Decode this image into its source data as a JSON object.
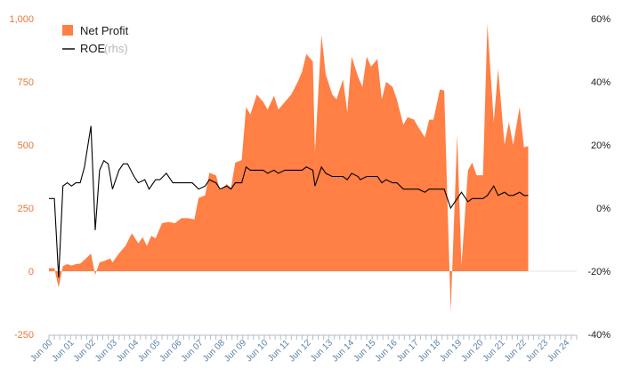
{
  "chart_data": {
    "type": "area+line",
    "colors": {
      "area": "#FF7F45",
      "line": "#000000",
      "left_ticks": "#E8763A",
      "right_ticks": "#1a1a1a",
      "x_ticks": "#5b7fa6"
    },
    "legend": {
      "area_label": "Net Profit",
      "line_label": "ROE",
      "line_suffix": "(rhs)"
    },
    "y_left": {
      "min": -250,
      "max": 1000,
      "ticks": [
        "1,000",
        "750",
        "500",
        "250",
        "0",
        "-250"
      ],
      "tick_values": [
        1000,
        750,
        500,
        250,
        0,
        -250
      ]
    },
    "y_right": {
      "min": -0.4,
      "max": 0.6,
      "ticks": [
        "60%",
        "40%",
        "20%",
        "0%",
        "-20%",
        "-40%"
      ],
      "tick_values": [
        0.6,
        0.4,
        0.2,
        0.0,
        -0.2,
        -0.4
      ]
    },
    "x": {
      "start": 2000.45,
      "end": 2024.95,
      "ticks": [
        "Jun 00",
        "Jun 01",
        "Jun 02",
        "Jun 03",
        "Jun 04",
        "Jun 05",
        "Jun 06",
        "Jun 07",
        "Jun 08",
        "Jun 09",
        "Jun 10",
        "Jun 11",
        "Jun 12",
        "Jun 13",
        "Jun 14",
        "Jun 15",
        "Jun 16",
        "Jun 17",
        "Jun 18",
        "Jun 19",
        "Jun 20",
        "Jun 21",
        "Jun 22",
        "Jun 23",
        "Jun 24"
      ],
      "tick_values": [
        2000.5,
        2001.5,
        2002.5,
        2003.5,
        2004.5,
        2005.5,
        2006.5,
        2007.5,
        2008.5,
        2009.5,
        2010.5,
        2011.5,
        2012.5,
        2013.5,
        2014.5,
        2015.5,
        2016.5,
        2017.5,
        2018.5,
        2019.5,
        2020.5,
        2021.5,
        2022.5,
        2023.5,
        2024.5
      ]
    },
    "series": [
      {
        "name": "Net Profit",
        "axis": "left",
        "points": [
          [
            2000.45,
            12
          ],
          [
            2000.7,
            12
          ],
          [
            2000.9,
            -65
          ],
          [
            2001.1,
            20
          ],
          [
            2001.3,
            28
          ],
          [
            2001.5,
            22
          ],
          [
            2001.7,
            28
          ],
          [
            2001.9,
            30
          ],
          [
            2002.1,
            45
          ],
          [
            2002.4,
            70
          ],
          [
            2002.6,
            -15
          ],
          [
            2002.8,
            35
          ],
          [
            2003.0,
            40
          ],
          [
            2003.3,
            50
          ],
          [
            2003.4,
            35
          ],
          [
            2003.7,
            70
          ],
          [
            2004.0,
            100
          ],
          [
            2004.3,
            150
          ],
          [
            2004.6,
            110
          ],
          [
            2004.8,
            135
          ],
          [
            2005.0,
            100
          ],
          [
            2005.2,
            140
          ],
          [
            2005.4,
            130
          ],
          [
            2005.7,
            190
          ],
          [
            2006.0,
            195
          ],
          [
            2006.3,
            190
          ],
          [
            2006.6,
            210
          ],
          [
            2006.9,
            210
          ],
          [
            2007.2,
            205
          ],
          [
            2007.4,
            290
          ],
          [
            2007.7,
            300
          ],
          [
            2007.9,
            390
          ],
          [
            2008.2,
            380
          ],
          [
            2008.4,
            320
          ],
          [
            2008.7,
            345
          ],
          [
            2008.9,
            330
          ],
          [
            2009.1,
            430
          ],
          [
            2009.4,
            440
          ],
          [
            2009.6,
            650
          ],
          [
            2009.8,
            620
          ],
          [
            2010.1,
            700
          ],
          [
            2010.4,
            670
          ],
          [
            2010.6,
            640
          ],
          [
            2010.9,
            695
          ],
          [
            2011.1,
            640
          ],
          [
            2011.4,
            670
          ],
          [
            2011.7,
            700
          ],
          [
            2012.0,
            750
          ],
          [
            2012.2,
            790
          ],
          [
            2012.4,
            860
          ],
          [
            2012.7,
            830
          ],
          [
            2012.8,
            470
          ],
          [
            2013.1,
            935
          ],
          [
            2013.3,
            780
          ],
          [
            2013.6,
            700
          ],
          [
            2013.8,
            680
          ],
          [
            2014.1,
            760
          ],
          [
            2014.3,
            630
          ],
          [
            2014.5,
            850
          ],
          [
            2014.8,
            770
          ],
          [
            2015.0,
            730
          ],
          [
            2015.2,
            850
          ],
          [
            2015.4,
            810
          ],
          [
            2015.7,
            840
          ],
          [
            2015.9,
            680
          ],
          [
            2016.1,
            750
          ],
          [
            2016.4,
            730
          ],
          [
            2016.6,
            680
          ],
          [
            2016.9,
            580
          ],
          [
            2017.1,
            610
          ],
          [
            2017.4,
            600
          ],
          [
            2017.6,
            570
          ],
          [
            2017.9,
            530
          ],
          [
            2018.1,
            600
          ],
          [
            2018.3,
            600
          ],
          [
            2018.6,
            720
          ],
          [
            2018.8,
            715
          ],
          [
            2019.1,
            -160
          ],
          [
            2019.4,
            540
          ],
          [
            2019.6,
            20
          ],
          [
            2019.9,
            400
          ],
          [
            2020.1,
            430
          ],
          [
            2020.3,
            380
          ],
          [
            2020.6,
            380
          ],
          [
            2020.8,
            980
          ],
          [
            2021.1,
            590
          ],
          [
            2021.3,
            800
          ],
          [
            2021.6,
            500
          ],
          [
            2021.8,
            590
          ],
          [
            2022.0,
            500
          ],
          [
            2022.3,
            650
          ],
          [
            2022.5,
            490
          ],
          [
            2022.7,
            495
          ]
        ]
      },
      {
        "name": "ROE",
        "axis": "right",
        "points": [
          [
            2000.45,
            0.03
          ],
          [
            2000.7,
            0.03
          ],
          [
            2000.9,
            -0.22
          ],
          [
            2001.1,
            0.07
          ],
          [
            2001.3,
            0.08
          ],
          [
            2001.5,
            0.07
          ],
          [
            2001.7,
            0.08
          ],
          [
            2001.9,
            0.08
          ],
          [
            2002.1,
            0.13
          ],
          [
            2002.4,
            0.26
          ],
          [
            2002.6,
            -0.07
          ],
          [
            2002.8,
            0.12
          ],
          [
            2003.0,
            0.15
          ],
          [
            2003.2,
            0.14
          ],
          [
            2003.4,
            0.06
          ],
          [
            2003.7,
            0.12
          ],
          [
            2003.9,
            0.14
          ],
          [
            2004.1,
            0.14
          ],
          [
            2004.4,
            0.1
          ],
          [
            2004.6,
            0.08
          ],
          [
            2004.9,
            0.09
          ],
          [
            2005.1,
            0.06
          ],
          [
            2005.4,
            0.09
          ],
          [
            2005.6,
            0.09
          ],
          [
            2005.9,
            0.11
          ],
          [
            2006.2,
            0.08
          ],
          [
            2006.5,
            0.08
          ],
          [
            2006.8,
            0.08
          ],
          [
            2007.1,
            0.08
          ],
          [
            2007.4,
            0.06
          ],
          [
            2007.7,
            0.07
          ],
          [
            2007.9,
            0.09
          ],
          [
            2008.2,
            0.08
          ],
          [
            2008.4,
            0.06
          ],
          [
            2008.7,
            0.07
          ],
          [
            2008.9,
            0.06
          ],
          [
            2009.1,
            0.08
          ],
          [
            2009.4,
            0.08
          ],
          [
            2009.6,
            0.13
          ],
          [
            2009.8,
            0.12
          ],
          [
            2010.1,
            0.12
          ],
          [
            2010.4,
            0.12
          ],
          [
            2010.6,
            0.11
          ],
          [
            2010.9,
            0.12
          ],
          [
            2011.1,
            0.11
          ],
          [
            2011.4,
            0.12
          ],
          [
            2011.7,
            0.12
          ],
          [
            2012.0,
            0.12
          ],
          [
            2012.2,
            0.12
          ],
          [
            2012.4,
            0.13
          ],
          [
            2012.7,
            0.12
          ],
          [
            2012.8,
            0.07
          ],
          [
            2013.1,
            0.13
          ],
          [
            2013.3,
            0.11
          ],
          [
            2013.6,
            0.1
          ],
          [
            2013.8,
            0.1
          ],
          [
            2014.1,
            0.1
          ],
          [
            2014.3,
            0.09
          ],
          [
            2014.5,
            0.11
          ],
          [
            2014.8,
            0.1
          ],
          [
            2014.9,
            0.09
          ],
          [
            2015.2,
            0.1
          ],
          [
            2015.4,
            0.1
          ],
          [
            2015.7,
            0.1
          ],
          [
            2015.9,
            0.08
          ],
          [
            2016.1,
            0.09
          ],
          [
            2016.4,
            0.08
          ],
          [
            2016.6,
            0.08
          ],
          [
            2016.9,
            0.06
          ],
          [
            2017.1,
            0.06
          ],
          [
            2017.4,
            0.06
          ],
          [
            2017.6,
            0.06
          ],
          [
            2017.9,
            0.05
          ],
          [
            2018.1,
            0.06
          ],
          [
            2018.3,
            0.06
          ],
          [
            2018.6,
            0.06
          ],
          [
            2018.8,
            0.06
          ],
          [
            2019.1,
            0.0
          ],
          [
            2019.4,
            0.03
          ],
          [
            2019.6,
            0.05
          ],
          [
            2019.9,
            0.02
          ],
          [
            2020.1,
            0.03
          ],
          [
            2020.3,
            0.03
          ],
          [
            2020.6,
            0.03
          ],
          [
            2020.8,
            0.04
          ],
          [
            2021.1,
            0.07
          ],
          [
            2021.3,
            0.04
          ],
          [
            2021.6,
            0.05
          ],
          [
            2021.8,
            0.04
          ],
          [
            2022.0,
            0.04
          ],
          [
            2022.3,
            0.05
          ],
          [
            2022.5,
            0.04
          ],
          [
            2022.7,
            0.04
          ]
        ]
      }
    ]
  }
}
